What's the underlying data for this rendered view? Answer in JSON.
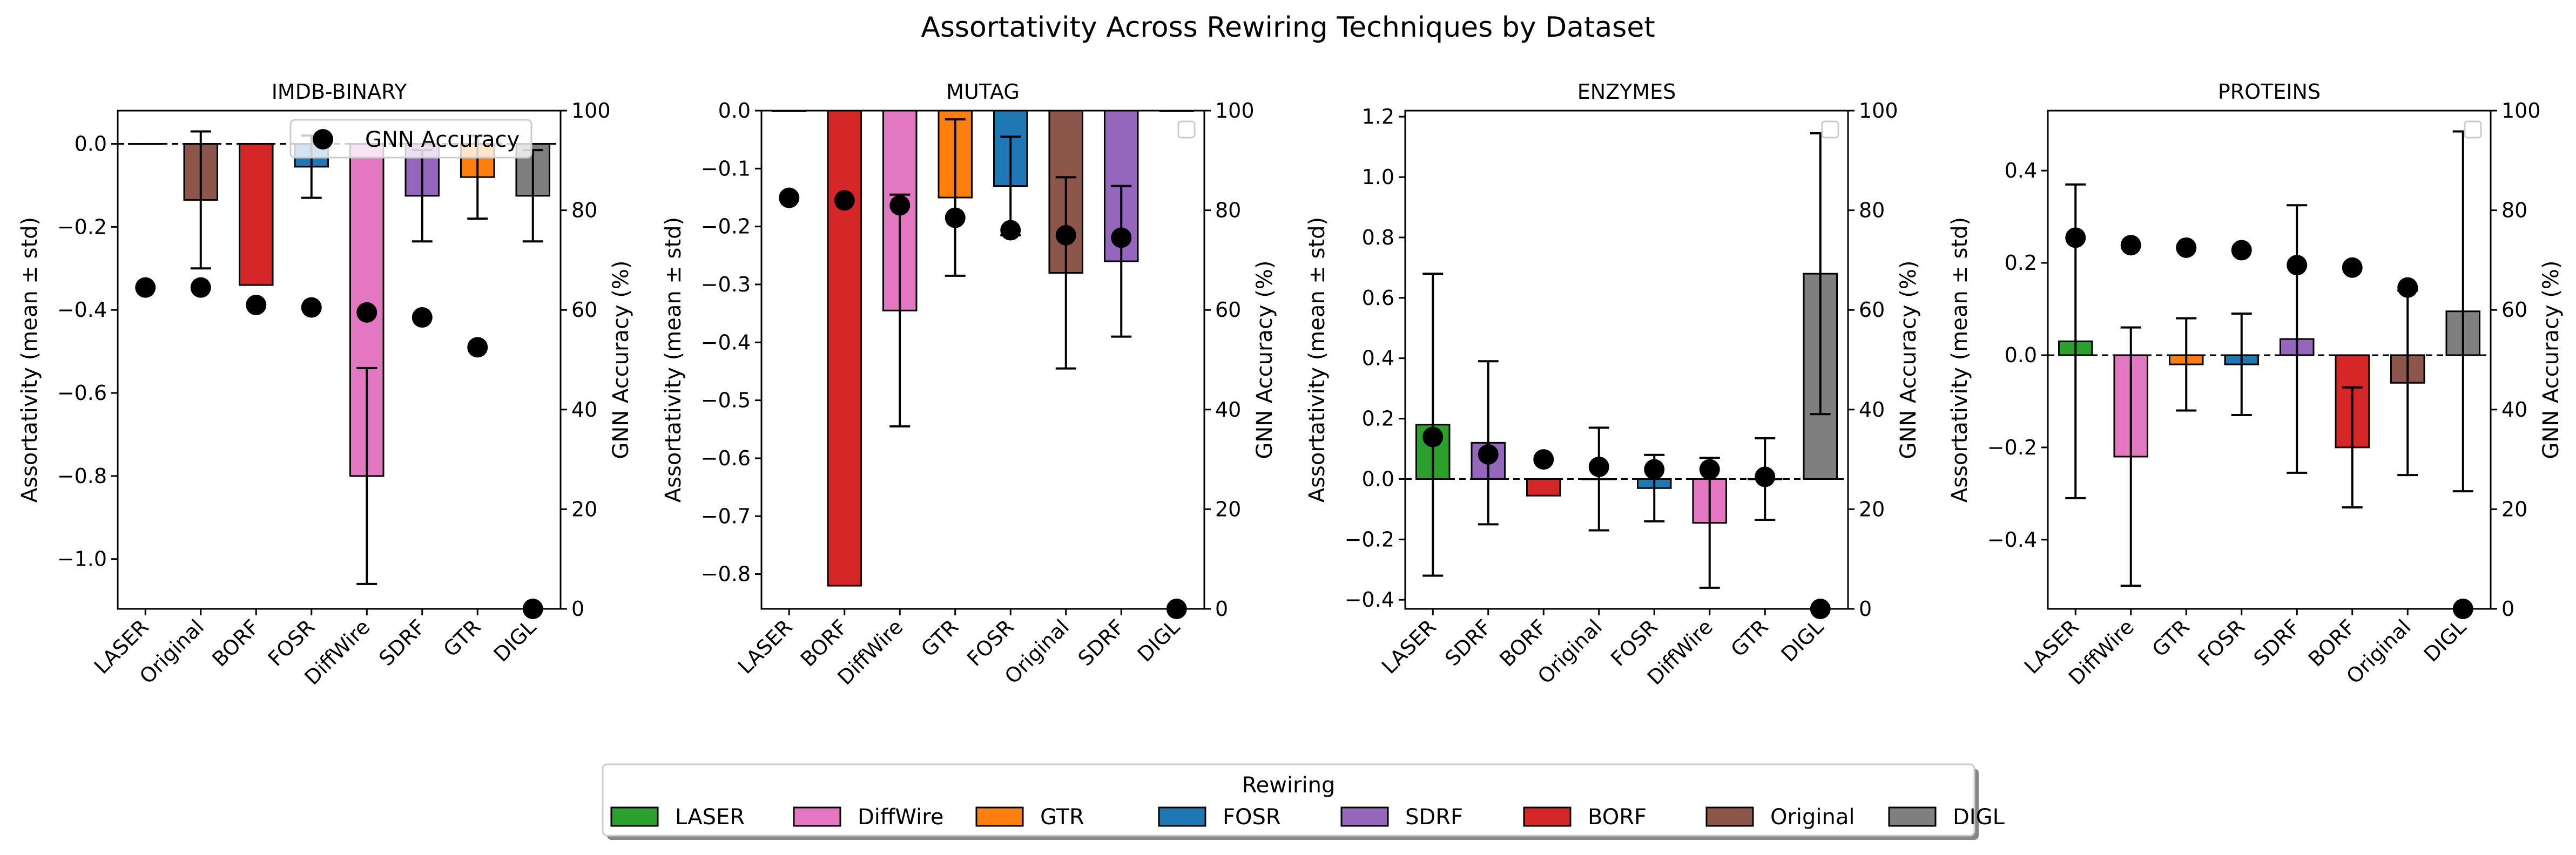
{
  "chart_data": {
    "suptitle": "Assortativity Across Rewiring Techniques by Dataset",
    "type": "bar",
    "colors": {
      "LASER": "#2ca02c",
      "DiffWire": "#e377c2",
      "GTR": "#ff7f0e",
      "FOSR": "#1f77b4",
      "SDRF": "#9467bd",
      "BORF": "#d62728",
      "Original": "#8c564b",
      "DIGL": "#7f7f7f"
    },
    "ylabel_left": "Assortativity (mean ± std)",
    "ylabel_right": "GNN Accuracy (%)",
    "right_axis": {
      "ylim": [
        0,
        100
      ],
      "ticks": [
        0,
        20,
        40,
        60,
        80,
        100
      ]
    },
    "scatter_legend_label": "GNN Accuracy",
    "panels": [
      {
        "title": "IMDB-BINARY",
        "ylim": [
          -1.12,
          0.08
        ],
        "yticks": [
          0.0,
          -0.2,
          -0.4,
          -0.6,
          -0.8,
          -1.0
        ],
        "ytick_labels": [
          "0.0",
          "−0.2",
          "−0.4",
          "−0.6",
          "−0.8",
          "−1.0"
        ],
        "categories": [
          "LASER",
          "Original",
          "BORF",
          "FOSR",
          "DiffWire",
          "SDRF",
          "GTR",
          "DIGL"
        ],
        "values": [
          0.0,
          -0.135,
          -0.34,
          -0.055,
          -0.8,
          -0.125,
          -0.08,
          -0.125
        ],
        "errors": [
          0.0,
          0.165,
          0.0,
          0.075,
          0.26,
          0.11,
          0.1,
          0.11
        ],
        "accuracy": [
          64.5,
          64.5,
          61.0,
          60.5,
          59.5,
          58.5,
          52.5,
          0
        ],
        "legend": "GNN Accuracy",
        "show_legend_entry": true
      },
      {
        "title": "MUTAG",
        "ylim": [
          -0.86,
          0.0
        ],
        "yticks": [
          0.0,
          -0.1,
          -0.2,
          -0.3,
          -0.4,
          -0.5,
          -0.6,
          -0.7,
          -0.8
        ],
        "ytick_labels": [
          "0.0",
          "−0.1",
          "−0.2",
          "−0.3",
          "−0.4",
          "−0.5",
          "−0.6",
          "−0.7",
          "−0.8"
        ],
        "categories": [
          "LASER",
          "BORF",
          "DiffWire",
          "GTR",
          "FOSR",
          "Original",
          "SDRF",
          "DIGL"
        ],
        "values": [
          0.0,
          -0.82,
          -0.345,
          -0.15,
          -0.13,
          -0.28,
          -0.26,
          0.0
        ],
        "errors": [
          0.0,
          0.0,
          0.2,
          0.135,
          0.085,
          0.165,
          0.13,
          0.0
        ],
        "accuracy": [
          82.5,
          82.0,
          81.0,
          78.5,
          76.0,
          75.0,
          74.5,
          0
        ],
        "show_legend_entry": false
      },
      {
        "title": "ENZYMES",
        "ylim": [
          -0.43,
          1.22
        ],
        "yticks": [
          -0.4,
          -0.2,
          0.0,
          0.2,
          0.4,
          0.6,
          0.8,
          1.0,
          1.2
        ],
        "ytick_labels": [
          "−0.4",
          "−0.2",
          "0.0",
          "0.2",
          "0.4",
          "0.6",
          "0.8",
          "1.0",
          "1.2"
        ],
        "categories": [
          "LASER",
          "SDRF",
          "BORF",
          "Original",
          "FOSR",
          "DiffWire",
          "GTR",
          "DIGL"
        ],
        "values": [
          0.18,
          0.12,
          -0.055,
          0.0,
          -0.03,
          -0.145,
          0.0,
          0.68
        ],
        "errors": [
          0.5,
          0.27,
          0.0,
          0.17,
          0.11,
          0.215,
          0.135,
          0.465
        ],
        "accuracy": [
          34.5,
          31.0,
          30.0,
          28.5,
          28.0,
          28.0,
          26.5,
          0
        ],
        "show_legend_entry": false
      },
      {
        "title": "PROTEINS",
        "ylim": [
          -0.55,
          0.53
        ],
        "yticks": [
          -0.4,
          -0.2,
          0.0,
          0.2,
          0.4
        ],
        "ytick_labels": [
          "−0.4",
          "−0.2",
          "0.0",
          "0.2",
          "0.4"
        ],
        "categories": [
          "LASER",
          "DiffWire",
          "GTR",
          "FOSR",
          "SDRF",
          "BORF",
          "Original",
          "DIGL"
        ],
        "values": [
          0.03,
          -0.22,
          -0.02,
          -0.02,
          0.035,
          -0.2,
          -0.06,
          0.095
        ],
        "errors": [
          0.34,
          0.28,
          0.1,
          0.11,
          0.29,
          0.13,
          0.2,
          0.39
        ],
        "accuracy": [
          74.5,
          73.0,
          72.5,
          72.0,
          69.0,
          68.5,
          64.5,
          0
        ],
        "show_legend_entry": false
      }
    ],
    "legend": {
      "title": "Rewiring",
      "items": [
        "LASER",
        "DiffWire",
        "GTR",
        "FOSR",
        "SDRF",
        "BORF",
        "Original",
        "DIGL"
      ]
    }
  }
}
